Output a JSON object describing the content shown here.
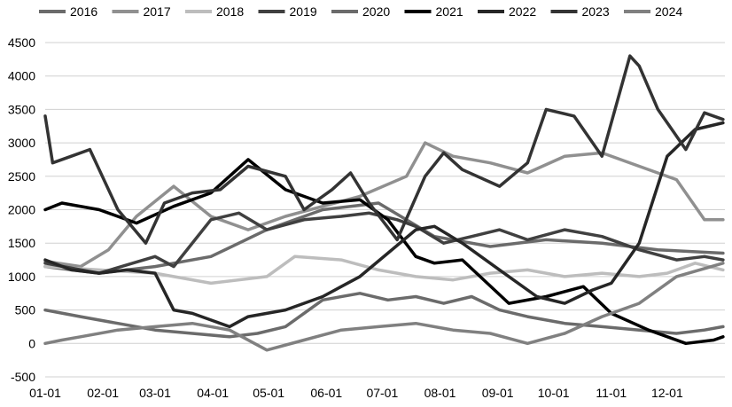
{
  "chart_data": {
    "type": "line",
    "title": "",
    "xlabel": "",
    "ylabel": "",
    "ylim": [
      -500,
      4500
    ],
    "yticks": [
      -500,
      0,
      500,
      1000,
      1500,
      2000,
      2500,
      3000,
      3500,
      4000,
      4500
    ],
    "ytick_labels": [
      "-500",
      "0",
      "500",
      "1000",
      "1500",
      "2000",
      "2500",
      "3000",
      "3500",
      "4000",
      "4500"
    ],
    "xticks": [
      1,
      32,
      60,
      91,
      121,
      152,
      182,
      213,
      244,
      274,
      305,
      335
    ],
    "xtick_labels": [
      "01-01",
      "02-01",
      "03-01",
      "04-01",
      "05-01",
      "06-01",
      "07-01",
      "08-01",
      "09-01",
      "10-01",
      "11-01",
      "12-01"
    ],
    "xlim": [
      1,
      366
    ],
    "grid": "horizontal",
    "legend_position": "top",
    "series": [
      {
        "name": "2016",
        "color": "#6b6b6b",
        "x": [
          1,
          30,
          60,
          90,
          120,
          150,
          180,
          210,
          240,
          270,
          300,
          330,
          365
        ],
        "values": [
          1150,
          1050,
          1150,
          1300,
          1700,
          2000,
          2100,
          1600,
          1450,
          1550,
          1500,
          1400,
          1350
        ]
      },
      {
        "name": "2017",
        "color": "#909090",
        "x": [
          1,
          20,
          35,
          50,
          70,
          90,
          110,
          130,
          150,
          170,
          195,
          205,
          220,
          240,
          260,
          280,
          300,
          320,
          340,
          355,
          365
        ],
        "values": [
          1230,
          1150,
          1400,
          1900,
          2350,
          1900,
          1700,
          1900,
          2050,
          2200,
          2500,
          3000,
          2800,
          2700,
          2550,
          2800,
          2850,
          2650,
          2450,
          1850,
          1850
        ]
      },
      {
        "name": "2018",
        "color": "#bdbdbd",
        "x": [
          1,
          30,
          60,
          90,
          120,
          135,
          160,
          180,
          200,
          220,
          240,
          260,
          280,
          300,
          320,
          335,
          350,
          365
        ],
        "values": [
          1150,
          1100,
          1050,
          900,
          1000,
          1300,
          1250,
          1100,
          1000,
          950,
          1050,
          1100,
          1000,
          1050,
          1000,
          1050,
          1200,
          1100
        ]
      },
      {
        "name": "2019",
        "color": "#404040",
        "x": [
          1,
          30,
          60,
          70,
          90,
          105,
          120,
          140,
          160,
          175,
          190,
          200,
          215,
          230,
          245,
          260,
          280,
          300,
          320,
          340,
          355,
          365
        ],
        "values": [
          1200,
          1050,
          1300,
          1150,
          1850,
          1950,
          1700,
          1850,
          1900,
          1950,
          1850,
          1750,
          1500,
          1600,
          1700,
          1550,
          1700,
          1600,
          1400,
          1250,
          1300,
          1250
        ]
      },
      {
        "name": "2020",
        "color": "#6b6b6b",
        "x": [
          1,
          20,
          40,
          60,
          80,
          100,
          115,
          130,
          150,
          170,
          185,
          200,
          215,
          230,
          245,
          260,
          280,
          300,
          320,
          340,
          355,
          365
        ],
        "values": [
          500,
          400,
          300,
          200,
          150,
          100,
          150,
          250,
          650,
          750,
          650,
          700,
          600,
          700,
          500,
          400,
          300,
          250,
          200,
          150,
          200,
          250
        ]
      },
      {
        "name": "2021",
        "color": "#000000",
        "x": [
          1,
          10,
          30,
          50,
          70,
          90,
          110,
          130,
          150,
          170,
          185,
          200,
          210,
          225,
          250,
          270,
          290,
          305,
          325,
          345,
          360,
          365
        ],
        "values": [
          2000,
          2100,
          2000,
          1800,
          2050,
          2250,
          2750,
          2300,
          2100,
          2150,
          1850,
          1300,
          1200,
          1250,
          600,
          700,
          850,
          450,
          200,
          0,
          50,
          100
        ]
      },
      {
        "name": "2022",
        "color": "#262626",
        "x": [
          1,
          15,
          30,
          45,
          60,
          70,
          80,
          90,
          100,
          110,
          130,
          150,
          170,
          185,
          200,
          210,
          225,
          245,
          265,
          280,
          295,
          305,
          320,
          335,
          350,
          365
        ],
        "values": [
          1250,
          1100,
          1050,
          1100,
          1050,
          500,
          450,
          350,
          250,
          400,
          500,
          700,
          1000,
          1350,
          1700,
          1750,
          1500,
          1100,
          700,
          600,
          800,
          900,
          1500,
          2800,
          3200,
          3300
        ]
      },
      {
        "name": "2023",
        "color": "#333333",
        "x": [
          1,
          5,
          15,
          25,
          40,
          55,
          65,
          80,
          95,
          110,
          130,
          140,
          155,
          165,
          175,
          190,
          205,
          215,
          225,
          245,
          260,
          270,
          285,
          300,
          315,
          320,
          330,
          345,
          355,
          365
        ],
        "values": [
          3400,
          2700,
          2800,
          2900,
          2000,
          1500,
          2100,
          2250,
          2300,
          2650,
          2500,
          2000,
          2300,
          2550,
          2100,
          1550,
          2500,
          2850,
          2600,
          2350,
          2700,
          3500,
          3400,
          2800,
          4300,
          4150,
          3500,
          2900,
          3450,
          3350
        ]
      },
      {
        "name": "2024",
        "color": "#808080",
        "x": [
          1,
          10,
          20,
          40,
          60,
          80,
          100,
          120,
          140,
          160,
          180,
          200,
          220,
          240,
          260,
          280,
          300,
          320,
          340,
          365
        ],
        "values": [
          0,
          50,
          100,
          200,
          250,
          300,
          200,
          -100,
          50,
          200,
          250,
          300,
          200,
          150,
          0,
          150,
          400,
          600,
          1000,
          1200
        ]
      }
    ]
  }
}
